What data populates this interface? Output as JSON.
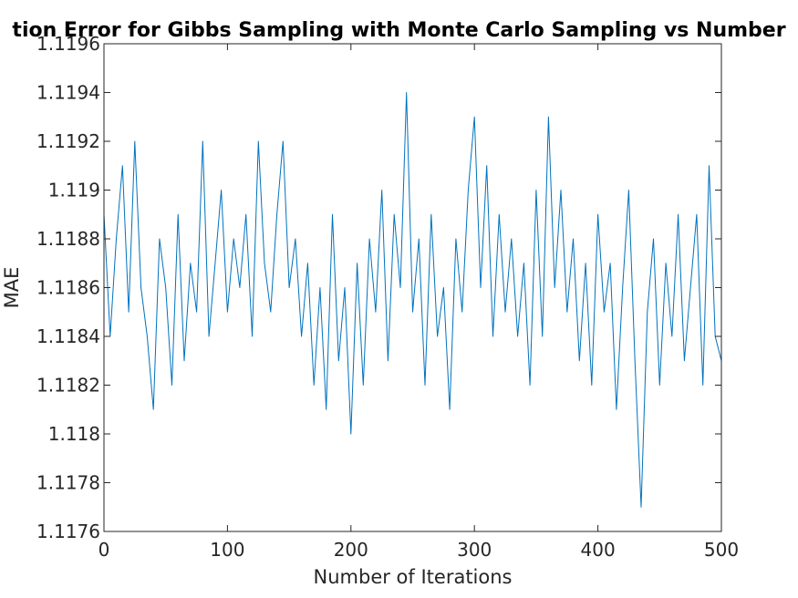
{
  "chart_data": {
    "type": "line",
    "title": "tion Error for Gibbs Sampling with Monte Carlo Sampling vs Number",
    "xlabel": "Number of Iterations",
    "ylabel": "MAE",
    "xlim": [
      0,
      500
    ],
    "ylim": [
      1.1176,
      1.1196
    ],
    "xticks": [
      0,
      100,
      200,
      300,
      400,
      500
    ],
    "xtick_labels": [
      "0",
      "100",
      "200",
      "300",
      "400",
      "500"
    ],
    "yticks": [
      1.1176,
      1.1178,
      1.118,
      1.1182,
      1.1184,
      1.1186,
      1.1188,
      1.119,
      1.1192,
      1.1194,
      1.1196
    ],
    "ytick_labels": [
      "1.1176",
      "1.1178",
      "1.118",
      "1.1182",
      "1.1184",
      "1.1186",
      "1.1188",
      "1.119",
      "1.1192",
      "1.1194",
      "1.1196"
    ],
    "grid": false,
    "series_color": "#0072BD",
    "series": [
      {
        "x": [
          0,
          5,
          10,
          15,
          20,
          25,
          30,
          35,
          40,
          45,
          50,
          55,
          60,
          65,
          70,
          75,
          80,
          85,
          90,
          95,
          100,
          105,
          110,
          115,
          120,
          125,
          130,
          135,
          140,
          145,
          150,
          155,
          160,
          165,
          170,
          175,
          180,
          185,
          190,
          195,
          200,
          205,
          210,
          215,
          220,
          225,
          230,
          235,
          240,
          245,
          250,
          255,
          260,
          265,
          270,
          275,
          280,
          285,
          290,
          295,
          300,
          305,
          310,
          315,
          320,
          325,
          330,
          335,
          340,
          345,
          350,
          355,
          360,
          365,
          370,
          375,
          380,
          385,
          390,
          395,
          400,
          405,
          410,
          415,
          420,
          425,
          430,
          435,
          440,
          445,
          450,
          455,
          460,
          465,
          470,
          475,
          480,
          485,
          490,
          495,
          500
        ],
        "values": [
          1.1189,
          1.1184,
          1.1188,
          1.1191,
          1.1185,
          1.1192,
          1.1186,
          1.1184,
          1.1181,
          1.1188,
          1.1186,
          1.1182,
          1.1189,
          1.1183,
          1.1187,
          1.1185,
          1.1192,
          1.1184,
          1.1187,
          1.119,
          1.1185,
          1.1188,
          1.1186,
          1.1189,
          1.1184,
          1.1192,
          1.1187,
          1.1185,
          1.1189,
          1.1192,
          1.1186,
          1.1188,
          1.1184,
          1.1187,
          1.1182,
          1.1186,
          1.1181,
          1.1189,
          1.1183,
          1.1186,
          1.118,
          1.1187,
          1.1182,
          1.1188,
          1.1185,
          1.119,
          1.1183,
          1.1189,
          1.1186,
          1.1194,
          1.1185,
          1.1188,
          1.1182,
          1.1189,
          1.1184,
          1.1186,
          1.1181,
          1.1188,
          1.1185,
          1.119,
          1.1193,
          1.1186,
          1.1191,
          1.1184,
          1.1189,
          1.1185,
          1.1188,
          1.1184,
          1.1187,
          1.1182,
          1.119,
          1.1184,
          1.1193,
          1.1186,
          1.119,
          1.1185,
          1.1188,
          1.1183,
          1.1187,
          1.1182,
          1.1189,
          1.1185,
          1.1187,
          1.1181,
          1.1186,
          1.119,
          1.1183,
          1.1177,
          1.1185,
          1.1188,
          1.1182,
          1.1187,
          1.1184,
          1.1189,
          1.1183,
          1.1186,
          1.1189,
          1.1182,
          1.1191,
          1.1184,
          1.1183
        ]
      }
    ]
  }
}
